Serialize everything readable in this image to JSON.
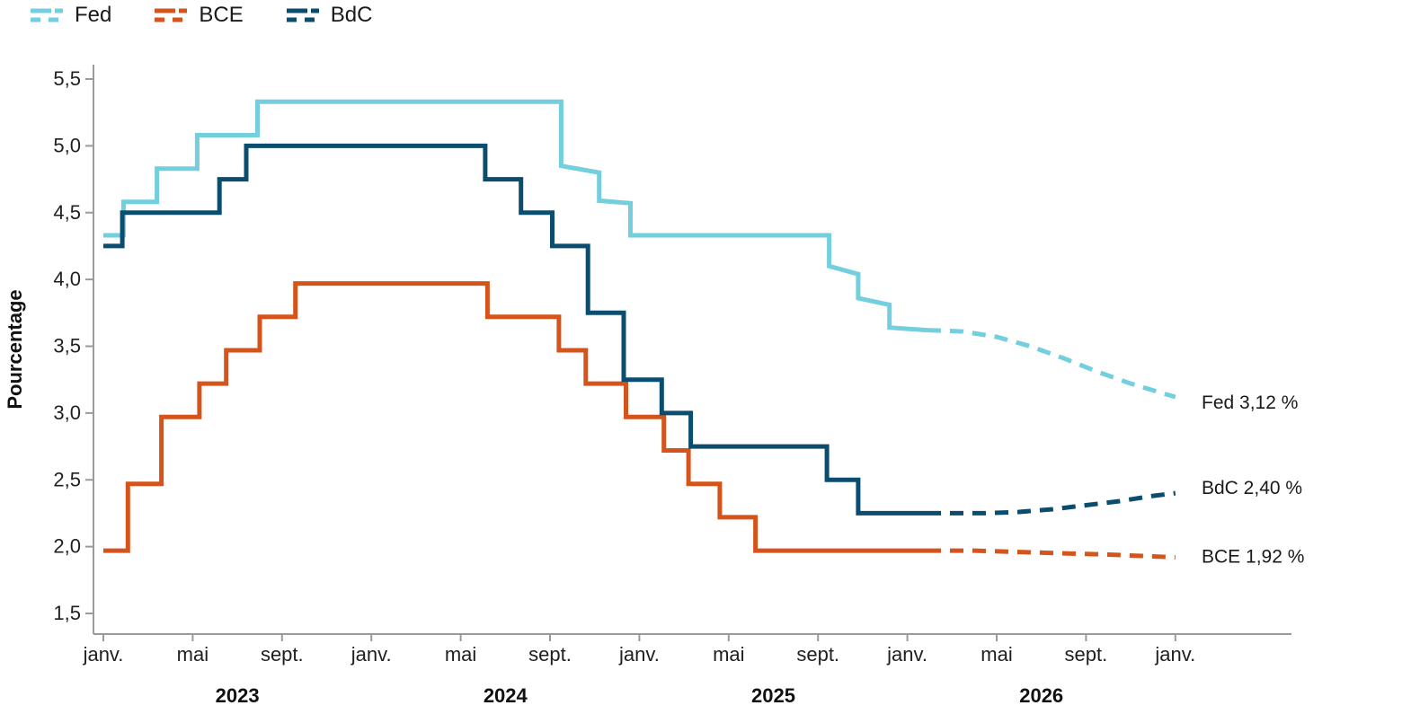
{
  "legend": {
    "items": [
      {
        "id": "fed",
        "label": "Fed"
      },
      {
        "id": "bce",
        "label": "BCE"
      },
      {
        "id": "bdc",
        "label": "BdC"
      }
    ]
  },
  "colors": {
    "fed": "#73CEDD",
    "bce": "#D4541C",
    "bdc": "#0B4D6F",
    "axis": "#9A9A9A",
    "tick_text": "#1F1F1F",
    "year_text": "#111111",
    "end_label_text": "#1A1A1A"
  },
  "chart_data": {
    "type": "line",
    "title": "",
    "xlabel": "",
    "ylabel": "Pourcentage",
    "ylim": [
      1.5,
      5.5
    ],
    "x_unit": "months since janv. 2023",
    "x_range_months": [
      0,
      48
    ],
    "grid": "off",
    "legend_position": "top-left",
    "yticks": [
      {
        "value": 5.5,
        "label": "5,5"
      },
      {
        "value": 5.0,
        "label": "5,0"
      },
      {
        "value": 4.5,
        "label": "4,5"
      },
      {
        "value": 4.0,
        "label": "4,0"
      },
      {
        "value": 3.5,
        "label": "3,5"
      },
      {
        "value": 3.0,
        "label": "3,0"
      },
      {
        "value": 2.5,
        "label": "2,5"
      },
      {
        "value": 2.0,
        "label": "2,0"
      },
      {
        "value": 1.5,
        "label": "1,5"
      }
    ],
    "xticks": [
      {
        "month": 0,
        "label": "janv."
      },
      {
        "month": 4,
        "label": "mai"
      },
      {
        "month": 8,
        "label": "sept."
      },
      {
        "month": 12,
        "label": "janv."
      },
      {
        "month": 16,
        "label": "mai"
      },
      {
        "month": 20,
        "label": "sept."
      },
      {
        "month": 24,
        "label": "janv."
      },
      {
        "month": 28,
        "label": "mai"
      },
      {
        "month": 32,
        "label": "sept."
      },
      {
        "month": 36,
        "label": "janv."
      },
      {
        "month": 40,
        "label": "mai"
      },
      {
        "month": 44,
        "label": "sept."
      },
      {
        "month": 48,
        "label": "janv."
      }
    ],
    "year_labels": [
      {
        "label": "2023",
        "month_center": 6
      },
      {
        "label": "2024",
        "month_center": 18
      },
      {
        "label": "2025",
        "month_center": 30
      },
      {
        "label": "2026",
        "month_center": 42
      }
    ],
    "series": [
      {
        "id": "fed",
        "name": "Fed",
        "color": "#73CEDD",
        "end_label": "Fed 3,12 %",
        "end_value": 3.12,
        "solid_points": [
          [
            0,
            4.33
          ],
          [
            0.9,
            4.33
          ],
          [
            0.9,
            4.58
          ],
          [
            2.4,
            4.58
          ],
          [
            2.4,
            4.83
          ],
          [
            4.2,
            4.83
          ],
          [
            4.2,
            5.08
          ],
          [
            6.9,
            5.08
          ],
          [
            6.9,
            5.33
          ],
          [
            20.5,
            5.33
          ],
          [
            20.5,
            4.85
          ],
          [
            22.2,
            4.8
          ],
          [
            22.2,
            4.59
          ],
          [
            23.6,
            4.57
          ],
          [
            23.6,
            4.33
          ],
          [
            32.5,
            4.33
          ],
          [
            32.5,
            4.1
          ],
          [
            33.8,
            4.04
          ],
          [
            33.8,
            3.86
          ],
          [
            35.2,
            3.81
          ],
          [
            35.2,
            3.64
          ],
          [
            36.9,
            3.62
          ]
        ],
        "forecast_points": [
          [
            36.9,
            3.62
          ],
          [
            38.5,
            3.61
          ],
          [
            40,
            3.57
          ],
          [
            41.5,
            3.5
          ],
          [
            43,
            3.41
          ],
          [
            44.5,
            3.31
          ],
          [
            46,
            3.22
          ],
          [
            47.2,
            3.16
          ],
          [
            48,
            3.12
          ]
        ]
      },
      {
        "id": "bce",
        "name": "BCE",
        "color": "#D4541C",
        "end_label": "BCE 1,92 %",
        "end_value": 1.92,
        "solid_points": [
          [
            0,
            1.97
          ],
          [
            1.1,
            1.97
          ],
          [
            1.1,
            2.47
          ],
          [
            2.6,
            2.47
          ],
          [
            2.6,
            2.97
          ],
          [
            4.3,
            2.97
          ],
          [
            4.3,
            3.22
          ],
          [
            5.5,
            3.22
          ],
          [
            5.5,
            3.47
          ],
          [
            7.0,
            3.47
          ],
          [
            7.0,
            3.72
          ],
          [
            8.6,
            3.72
          ],
          [
            8.6,
            3.97
          ],
          [
            17.2,
            3.97
          ],
          [
            17.2,
            3.72
          ],
          [
            20.4,
            3.72
          ],
          [
            20.4,
            3.47
          ],
          [
            21.6,
            3.47
          ],
          [
            21.6,
            3.22
          ],
          [
            23.4,
            3.22
          ],
          [
            23.4,
            2.97
          ],
          [
            25.1,
            2.97
          ],
          [
            25.1,
            2.72
          ],
          [
            26.2,
            2.72
          ],
          [
            26.2,
            2.47
          ],
          [
            27.6,
            2.47
          ],
          [
            27.6,
            2.22
          ],
          [
            29.2,
            2.22
          ],
          [
            29.2,
            1.97
          ],
          [
            36.9,
            1.97
          ]
        ],
        "forecast_points": [
          [
            36.9,
            1.97
          ],
          [
            39,
            1.97
          ],
          [
            41,
            1.96
          ],
          [
            43,
            1.95
          ],
          [
            45,
            1.94
          ],
          [
            46.5,
            1.93
          ],
          [
            48,
            1.92
          ]
        ]
      },
      {
        "id": "bdc",
        "name": "BdC",
        "color": "#0B4D6F",
        "end_label": "BdC 2,40 %",
        "end_value": 2.4,
        "solid_points": [
          [
            0,
            4.25
          ],
          [
            0.85,
            4.25
          ],
          [
            0.85,
            4.5
          ],
          [
            5.2,
            4.5
          ],
          [
            5.2,
            4.75
          ],
          [
            6.4,
            4.75
          ],
          [
            6.4,
            5.0
          ],
          [
            17.1,
            5.0
          ],
          [
            17.1,
            4.75
          ],
          [
            18.7,
            4.75
          ],
          [
            18.7,
            4.5
          ],
          [
            20.1,
            4.5
          ],
          [
            20.1,
            4.25
          ],
          [
            21.7,
            4.25
          ],
          [
            21.7,
            3.75
          ],
          [
            23.3,
            3.75
          ],
          [
            23.3,
            3.25
          ],
          [
            25.0,
            3.25
          ],
          [
            25.0,
            3.0
          ],
          [
            26.3,
            3.0
          ],
          [
            26.3,
            2.75
          ],
          [
            32.4,
            2.75
          ],
          [
            32.4,
            2.5
          ],
          [
            33.8,
            2.5
          ],
          [
            33.8,
            2.25
          ],
          [
            36.9,
            2.25
          ]
        ],
        "forecast_points": [
          [
            36.9,
            2.25
          ],
          [
            39.5,
            2.25
          ],
          [
            41,
            2.26
          ],
          [
            42.5,
            2.28
          ],
          [
            44,
            2.31
          ],
          [
            45.5,
            2.34
          ],
          [
            47,
            2.38
          ],
          [
            48,
            2.4
          ]
        ]
      }
    ]
  }
}
